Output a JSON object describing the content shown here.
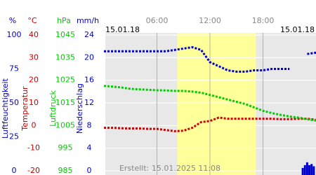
{
  "chart_data": {
    "type": "line",
    "date_left": "15.01.18",
    "date_right": "15.01.18",
    "created": "Erstellt: 15.01.2025 11:08",
    "xlim": [
      0,
      24
    ],
    "xticks": [
      {
        "value": 6,
        "label": "06:00"
      },
      {
        "value": 12,
        "label": "12:00"
      },
      {
        "value": 18,
        "label": "18:00"
      }
    ],
    "daylight": [
      8.3,
      17.2
    ],
    "grid": true,
    "axes": [
      {
        "unit": "%",
        "label": "Luftfeuchtigkeit",
        "color": "#0000cc",
        "ylim": [
          0,
          100
        ],
        "yticks": [
          0,
          25,
          50,
          75,
          100
        ]
      },
      {
        "unit": "°C",
        "label": "Temperatur",
        "color": "#cc0000",
        "ylim": [
          -20,
          40
        ],
        "yticks": [
          -20,
          -10,
          0,
          10,
          20,
          30,
          40
        ]
      },
      {
        "unit": "hPa",
        "label": "Luftdruck",
        "color": "#00cc00",
        "ylim": [
          985,
          1045
        ],
        "yticks": [
          985,
          995,
          1005,
          1015,
          1025,
          1035,
          1045
        ]
      },
      {
        "unit": "mm/h",
        "label": "Niederschlag",
        "color": "#0000cc",
        "ylim": [
          0,
          24
        ],
        "yticks": [
          0,
          4,
          8,
          12,
          16,
          20,
          24
        ]
      }
    ],
    "x": [
      0,
      1,
      2,
      3,
      4,
      5,
      6,
      7,
      8,
      9,
      10,
      11,
      12,
      13,
      14,
      15,
      16,
      17,
      18,
      19,
      20,
      21,
      22,
      23,
      24
    ],
    "series": [
      {
        "name": "Luftfeuchtigkeit",
        "axis": 0,
        "color": "#0000cc",
        "values": [
          88,
          88,
          88,
          88,
          88,
          88,
          88,
          88,
          89,
          90,
          91,
          89,
          80,
          77,
          74,
          73,
          73,
          74,
          74,
          75,
          75,
          75,
          null,
          86,
          87
        ]
      },
      {
        "name": "Temperatur",
        "axis": 1,
        "color": "#cc0000",
        "values": [
          -1,
          -1,
          -1.2,
          -1.3,
          -1.3,
          -1.5,
          -1.5,
          -2,
          -2.5,
          -2.3,
          -1,
          1.5,
          2,
          3.5,
          3,
          3,
          3,
          3,
          3,
          3,
          2.8,
          2.8,
          3,
          3,
          2.5
        ]
      },
      {
        "name": "Luftdruck",
        "axis": 2,
        "color": "#00cc00",
        "values": [
          1022.5,
          1022.2,
          1021.8,
          1021.2,
          1021,
          1020.8,
          1020.6,
          1020.5,
          1020.3,
          1020.3,
          1020,
          1019.5,
          1018.5,
          1017.5,
          1016.5,
          1015.5,
          1014.5,
          1013,
          1011.5,
          1010.5,
          1009.7,
          1009,
          1008.5,
          1007.8,
          1007.2
        ]
      },
      {
        "name": "Niederschlag",
        "axis": 3,
        "type": "bar",
        "color": "#0000cc",
        "x": [
          22.5,
          22.75,
          23,
          23.25,
          23.5,
          23.75
        ],
        "values": [
          0.5,
          1,
          1.5,
          1,
          1.2,
          0.8
        ]
      }
    ]
  }
}
